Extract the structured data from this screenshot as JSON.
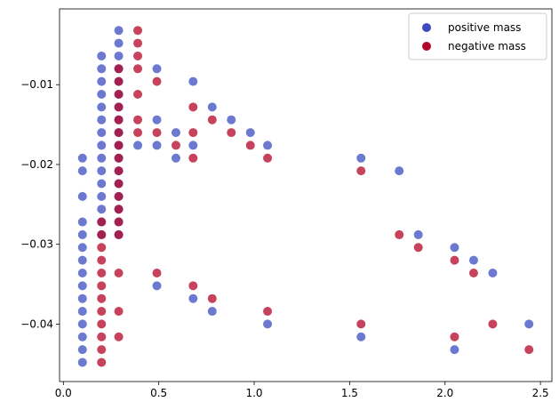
{
  "chart_data": {
    "type": "scatter",
    "title": "",
    "xlabel": "",
    "ylabel": "",
    "xlim": [
      -0.02,
      2.56
    ],
    "ylim": [
      -0.0472,
      -0.0005
    ],
    "xticks": [
      0.0,
      0.5,
      1.0,
      1.5,
      2.0,
      2.5
    ],
    "xtick_labels": [
      "0.0",
      "0.5",
      "1.0",
      "1.5",
      "2.0",
      "2.5"
    ],
    "yticks": [
      -0.01,
      -0.02,
      -0.03,
      -0.04
    ],
    "ytick_labels": [
      "−0.01",
      "−0.02",
      "−0.03",
      "−0.04"
    ],
    "grid": false,
    "legend_position": "top-right",
    "series": [
      {
        "name": "positive mass",
        "color": "#3b4cc0",
        "points": [
          [
            0.1,
            -0.0192
          ],
          [
            0.1,
            -0.0208
          ],
          [
            0.1,
            -0.024
          ],
          [
            0.1,
            -0.0272
          ],
          [
            0.1,
            -0.0288
          ],
          [
            0.1,
            -0.0304
          ],
          [
            0.1,
            -0.032
          ],
          [
            0.1,
            -0.0336
          ],
          [
            0.1,
            -0.0352
          ],
          [
            0.1,
            -0.0368
          ],
          [
            0.1,
            -0.0384
          ],
          [
            0.1,
            -0.04
          ],
          [
            0.1,
            -0.0416
          ],
          [
            0.1,
            -0.0432
          ],
          [
            0.1,
            -0.0448
          ],
          [
            0.2,
            -0.0064
          ],
          [
            0.2,
            -0.008
          ],
          [
            0.2,
            -0.0096
          ],
          [
            0.2,
            -0.0112
          ],
          [
            0.2,
            -0.0128
          ],
          [
            0.2,
            -0.0144
          ],
          [
            0.2,
            -0.016
          ],
          [
            0.2,
            -0.0176
          ],
          [
            0.2,
            -0.0192
          ],
          [
            0.2,
            -0.0208
          ],
          [
            0.2,
            -0.0224
          ],
          [
            0.2,
            -0.024
          ],
          [
            0.2,
            -0.0256
          ],
          [
            0.2,
            -0.0272
          ],
          [
            0.2,
            -0.0288
          ],
          [
            0.29,
            -0.0032
          ],
          [
            0.29,
            -0.0048
          ],
          [
            0.29,
            -0.0064
          ],
          [
            0.29,
            -0.008
          ],
          [
            0.29,
            -0.0096
          ],
          [
            0.29,
            -0.0112
          ],
          [
            0.29,
            -0.0128
          ],
          [
            0.29,
            -0.0144
          ],
          [
            0.29,
            -0.016
          ],
          [
            0.29,
            -0.0176
          ],
          [
            0.29,
            -0.0192
          ],
          [
            0.29,
            -0.0208
          ],
          [
            0.29,
            -0.0224
          ],
          [
            0.29,
            -0.024
          ],
          [
            0.29,
            -0.0256
          ],
          [
            0.29,
            -0.0272
          ],
          [
            0.29,
            -0.0288
          ],
          [
            0.39,
            -0.0176
          ],
          [
            0.49,
            -0.008
          ],
          [
            0.49,
            -0.0144
          ],
          [
            0.49,
            -0.0176
          ],
          [
            0.49,
            -0.0352
          ],
          [
            0.59,
            -0.016
          ],
          [
            0.59,
            -0.0192
          ],
          [
            0.68,
            -0.0096
          ],
          [
            0.68,
            -0.0176
          ],
          [
            0.68,
            -0.0368
          ],
          [
            0.78,
            -0.0128
          ],
          [
            0.78,
            -0.0384
          ],
          [
            0.88,
            -0.0144
          ],
          [
            0.98,
            -0.016
          ],
          [
            1.07,
            -0.0176
          ],
          [
            1.07,
            -0.04
          ],
          [
            1.56,
            -0.0192
          ],
          [
            1.56,
            -0.0416
          ],
          [
            1.76,
            -0.0208
          ],
          [
            1.86,
            -0.0288
          ],
          [
            2.05,
            -0.0304
          ],
          [
            2.05,
            -0.0432
          ],
          [
            2.15,
            -0.032
          ],
          [
            2.25,
            -0.0336
          ],
          [
            2.44,
            -0.04
          ]
        ]
      },
      {
        "name": "negative mass",
        "color": "#b40426",
        "points": [
          [
            0.2,
            -0.0272
          ],
          [
            0.2,
            -0.0288
          ],
          [
            0.2,
            -0.0304
          ],
          [
            0.2,
            -0.032
          ],
          [
            0.2,
            -0.0336
          ],
          [
            0.2,
            -0.0352
          ],
          [
            0.2,
            -0.0368
          ],
          [
            0.2,
            -0.0384
          ],
          [
            0.2,
            -0.04
          ],
          [
            0.2,
            -0.0416
          ],
          [
            0.2,
            -0.0432
          ],
          [
            0.2,
            -0.0448
          ],
          [
            0.29,
            -0.008
          ],
          [
            0.29,
            -0.0096
          ],
          [
            0.29,
            -0.0112
          ],
          [
            0.29,
            -0.0128
          ],
          [
            0.29,
            -0.0144
          ],
          [
            0.29,
            -0.016
          ],
          [
            0.29,
            -0.0176
          ],
          [
            0.29,
            -0.0192
          ],
          [
            0.29,
            -0.0208
          ],
          [
            0.29,
            -0.0224
          ],
          [
            0.29,
            -0.024
          ],
          [
            0.29,
            -0.0256
          ],
          [
            0.29,
            -0.0272
          ],
          [
            0.29,
            -0.0288
          ],
          [
            0.29,
            -0.0336
          ],
          [
            0.29,
            -0.0384
          ],
          [
            0.29,
            -0.0416
          ],
          [
            0.39,
            -0.0032
          ],
          [
            0.39,
            -0.0048
          ],
          [
            0.39,
            -0.0064
          ],
          [
            0.39,
            -0.008
          ],
          [
            0.39,
            -0.0112
          ],
          [
            0.39,
            -0.0144
          ],
          [
            0.39,
            -0.016
          ],
          [
            0.49,
            -0.0096
          ],
          [
            0.49,
            -0.016
          ],
          [
            0.49,
            -0.0336
          ],
          [
            0.59,
            -0.0176
          ],
          [
            0.68,
            -0.0128
          ],
          [
            0.68,
            -0.016
          ],
          [
            0.68,
            -0.0192
          ],
          [
            0.68,
            -0.0352
          ],
          [
            0.78,
            -0.0144
          ],
          [
            0.78,
            -0.0368
          ],
          [
            0.88,
            -0.016
          ],
          [
            0.98,
            -0.0176
          ],
          [
            1.07,
            -0.0192
          ],
          [
            1.07,
            -0.0384
          ],
          [
            1.56,
            -0.0208
          ],
          [
            1.56,
            -0.04
          ],
          [
            1.76,
            -0.0288
          ],
          [
            1.86,
            -0.0304
          ],
          [
            2.05,
            -0.032
          ],
          [
            2.05,
            -0.0416
          ],
          [
            2.15,
            -0.0336
          ],
          [
            2.25,
            -0.04
          ],
          [
            2.44,
            -0.0432
          ]
        ]
      }
    ]
  }
}
